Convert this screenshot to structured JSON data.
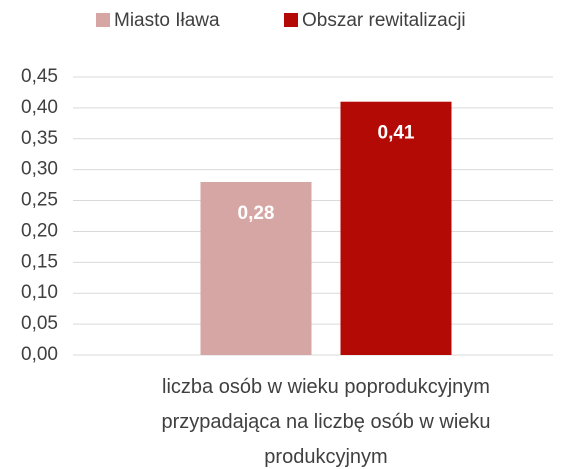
{
  "chart_data": {
    "type": "bar",
    "categories": [
      "liczba osób w wieku poprodukcyjnym przypadająca na liczbę osób w wieku produkcyjnym"
    ],
    "series": [
      {
        "name": "Miasto Iława",
        "color": "#d5a6a3",
        "values": [
          0.28
        ],
        "value_labels": [
          "0,28"
        ]
      },
      {
        "name": "Obszar rewitalizacji",
        "color": "#b30a06",
        "values": [
          0.41
        ],
        "value_labels": [
          "0,41"
        ]
      }
    ],
    "ylim": [
      0,
      0.45
    ],
    "yticks": [
      {
        "value": 0,
        "label": "0,00"
      },
      {
        "value": 0.05,
        "label": "0,05"
      },
      {
        "value": 0.1,
        "label": "0,10"
      },
      {
        "value": 0.15,
        "label": "0,15"
      },
      {
        "value": 0.2,
        "label": "0,20"
      },
      {
        "value": 0.25,
        "label": "0,25"
      },
      {
        "value": 0.3,
        "label": "0,30"
      },
      {
        "value": 0.35,
        "label": "0,35"
      },
      {
        "value": 0.4,
        "label": "0,40"
      },
      {
        "value": 0.45,
        "label": "0,45"
      }
    ],
    "grid": true,
    "legend": "top"
  }
}
